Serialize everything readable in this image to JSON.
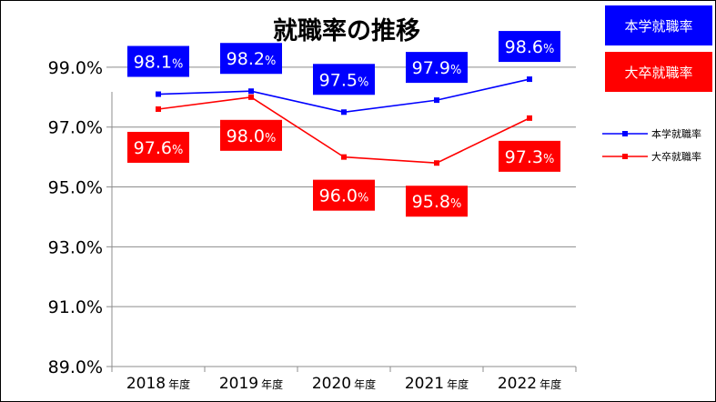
{
  "chart_data": {
    "type": "line",
    "title": "就職率の推移",
    "categories": [
      {
        "year": "2018",
        "unit": "年度"
      },
      {
        "year": "2019",
        "unit": "年度"
      },
      {
        "year": "2020",
        "unit": "年度"
      },
      {
        "year": "2021",
        "unit": "年度"
      },
      {
        "year": "2022",
        "unit": "年度"
      }
    ],
    "yticks": [
      "89.0%",
      "91.0%",
      "93.0%",
      "95.0%",
      "97.0%",
      "99.0%"
    ],
    "ylim": [
      89.0,
      100.0
    ],
    "grid": true,
    "legend_position": "right",
    "series": [
      {
        "name": "本学就職率",
        "color": "#0000ff",
        "values": [
          98.1,
          98.2,
          97.5,
          97.9,
          98.6
        ],
        "labels": [
          "98.1",
          "98.2",
          "97.5",
          "97.9",
          "98.6"
        ],
        "label_suffix": "%"
      },
      {
        "name": "大卒就職率",
        "color": "#ff0000",
        "values": [
          97.6,
          98.0,
          96.0,
          95.8,
          97.3
        ],
        "labels": [
          "97.6",
          "98.0",
          "96.0",
          "95.8",
          "97.3"
        ],
        "label_suffix": "%"
      }
    ]
  },
  "callouts": [
    "本学就職率",
    "大卒就職率"
  ]
}
